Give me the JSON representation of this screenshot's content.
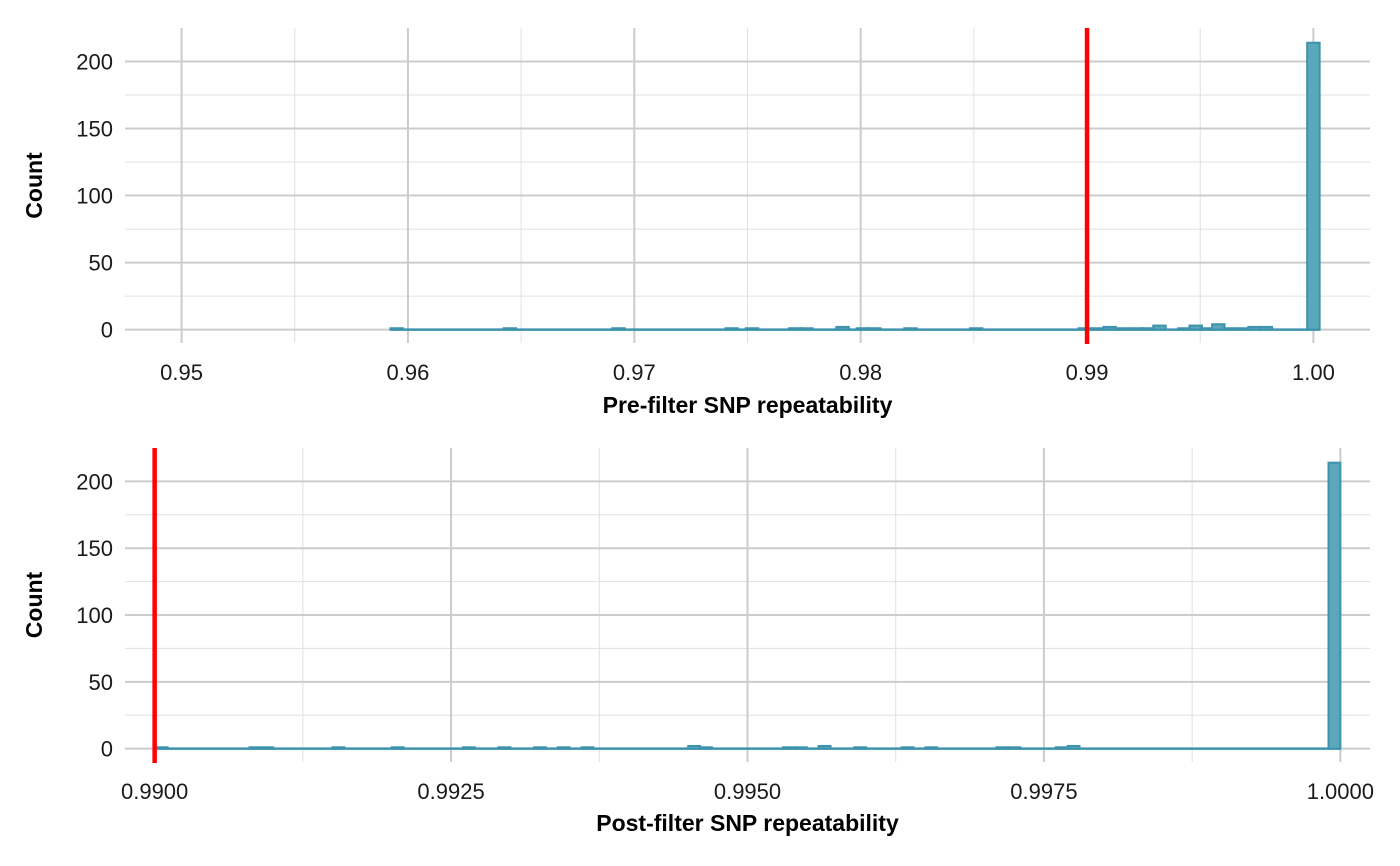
{
  "chart_data": [
    {
      "type": "bar",
      "xlabel": "Pre-filter SNP repeatability",
      "ylabel": "Count",
      "xlim": [
        0.9475,
        1.0025
      ],
      "ylim": [
        -10,
        225
      ],
      "x_ticks": [
        0.95,
        0.96,
        0.97,
        0.98,
        0.99,
        1.0
      ],
      "x_tick_labels": [
        "0.95",
        "0.96",
        "0.97",
        "0.98",
        "0.99",
        "1.00"
      ],
      "y_ticks": [
        0,
        50,
        100,
        150,
        200
      ],
      "y_tick_labels": [
        "0",
        "50",
        "100",
        "150",
        "200"
      ],
      "grid": true,
      "threshold_x": 0.99,
      "bin_width": 0.00055,
      "bins": [
        {
          "x": 0.9595,
          "count": 1
        },
        {
          "x": 0.9645,
          "count": 1
        },
        {
          "x": 0.9693,
          "count": 1
        },
        {
          "x": 0.9743,
          "count": 1
        },
        {
          "x": 0.9752,
          "count": 1
        },
        {
          "x": 0.9771,
          "count": 1
        },
        {
          "x": 0.9776,
          "count": 1
        },
        {
          "x": 0.9792,
          "count": 2
        },
        {
          "x": 0.9801,
          "count": 1
        },
        {
          "x": 0.9806,
          "count": 1
        },
        {
          "x": 0.9822,
          "count": 1
        },
        {
          "x": 0.9851,
          "count": 1
        },
        {
          "x": 0.9899,
          "count": 1
        },
        {
          "x": 0.9905,
          "count": 1
        },
        {
          "x": 0.991,
          "count": 2
        },
        {
          "x": 0.9916,
          "count": 1
        },
        {
          "x": 0.9922,
          "count": 1
        },
        {
          "x": 0.9927,
          "count": 1
        },
        {
          "x": 0.9932,
          "count": 3
        },
        {
          "x": 0.9943,
          "count": 1
        },
        {
          "x": 0.9948,
          "count": 3
        },
        {
          "x": 0.9953,
          "count": 1
        },
        {
          "x": 0.9958,
          "count": 4
        },
        {
          "x": 0.9963,
          "count": 1
        },
        {
          "x": 0.9969,
          "count": 1
        },
        {
          "x": 0.9974,
          "count": 2
        },
        {
          "x": 0.9979,
          "count": 2
        },
        {
          "x": 1.0,
          "count": 214
        }
      ]
    },
    {
      "type": "bar",
      "xlabel": "Post-filter SNP repeatability",
      "ylabel": "Count",
      "xlim": [
        0.98975,
        1.00025
      ],
      "ylim": [
        -10,
        225
      ],
      "x_ticks": [
        0.99,
        0.9925,
        0.995,
        0.9975,
        1.0
      ],
      "x_tick_labels": [
        "0.9900",
        "0.9925",
        "0.9950",
        "0.9975",
        "1.0000"
      ],
      "y_ticks": [
        0,
        50,
        100,
        150,
        200
      ],
      "y_tick_labels": [
        "0",
        "50",
        "100",
        "150",
        "200"
      ],
      "grid": true,
      "threshold_x": 0.99,
      "bin_width": 0.0001,
      "bins": [
        {
          "x": 0.99006,
          "count": 1
        },
        {
          "x": 0.99085,
          "count": 1
        },
        {
          "x": 0.99095,
          "count": 1
        },
        {
          "x": 0.99155,
          "count": 1
        },
        {
          "x": 0.99205,
          "count": 1
        },
        {
          "x": 0.99265,
          "count": 1
        },
        {
          "x": 0.99295,
          "count": 1
        },
        {
          "x": 0.99325,
          "count": 1
        },
        {
          "x": 0.99345,
          "count": 1
        },
        {
          "x": 0.99365,
          "count": 1
        },
        {
          "x": 0.99455,
          "count": 2
        },
        {
          "x": 0.99465,
          "count": 1
        },
        {
          "x": 0.99535,
          "count": 1
        },
        {
          "x": 0.99545,
          "count": 1
        },
        {
          "x": 0.99565,
          "count": 2
        },
        {
          "x": 0.99595,
          "count": 1
        },
        {
          "x": 0.99635,
          "count": 1
        },
        {
          "x": 0.99655,
          "count": 1
        },
        {
          "x": 0.99715,
          "count": 1
        },
        {
          "x": 0.99725,
          "count": 1
        },
        {
          "x": 0.99765,
          "count": 1
        },
        {
          "x": 0.99775,
          "count": 2
        },
        {
          "x": 0.99995,
          "count": 214
        }
      ]
    }
  ],
  "colors": {
    "bar_fill": "#5ba8bb",
    "bar_edge": "#3d93ad",
    "threshold_line": "#ff0000",
    "major_grid": "#cccccc",
    "minor_grid": "#e0e0e0"
  }
}
